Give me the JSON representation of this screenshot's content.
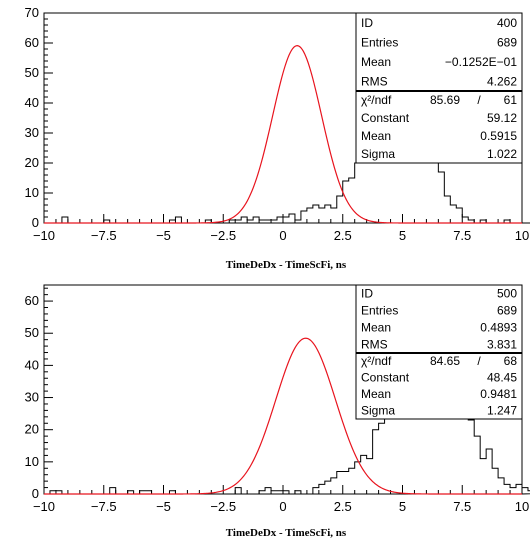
{
  "chart_data": [
    {
      "type": "histogram",
      "xlabel": "TimeDeDx - TimeScFi, ns",
      "xlim": [
        -10,
        10
      ],
      "ylim": [
        0,
        70
      ],
      "x_ticks": [
        -10,
        -7.5,
        -5,
        -2.5,
        0,
        2.5,
        5,
        7.5,
        10
      ],
      "x_tick_labels": [
        "−10",
        "−7.5",
        "−5",
        "−2.5",
        "0",
        "2.5",
        "5",
        "7.5",
        "10"
      ],
      "y_ticks": [
        0,
        10,
        20,
        30,
        40,
        50,
        60,
        70
      ],
      "y_tick_labels": [
        "0",
        "10",
        "20",
        "30",
        "40",
        "50",
        "60",
        "70"
      ],
      "bin_width": 0.25,
      "counts": [
        0,
        0,
        0,
        2,
        0,
        0,
        0,
        0,
        0,
        0,
        1,
        0,
        0,
        0,
        0,
        0,
        0,
        0,
        0,
        0,
        0,
        1,
        2,
        0,
        0,
        0,
        0,
        1,
        0,
        0,
        0,
        1,
        1,
        2,
        1,
        2,
        1,
        1,
        1,
        2,
        2,
        3,
        1,
        4,
        5,
        6,
        5,
        6,
        5,
        9,
        14,
        15,
        20,
        27,
        35,
        43,
        49,
        53,
        65,
        60,
        52,
        65,
        65,
        60,
        40,
        28,
        17,
        9,
        6,
        5,
        2,
        1,
        0,
        1,
        0,
        0,
        0,
        1,
        0,
        0,
        0,
        0,
        0,
        0,
        1,
        0,
        0,
        0,
        0,
        0,
        0,
        0,
        0,
        0,
        0,
        0,
        0,
        0,
        0,
        0
      ],
      "fit": {
        "constant": 59.12,
        "mean": 0.5915,
        "sigma": 1.022,
        "color": "#e8141e"
      },
      "stats": [
        {
          "label": "ID",
          "value": "400"
        },
        {
          "label": "Entries",
          "value": "689"
        },
        {
          "label": "Mean",
          "value": "−0.1252E−01"
        },
        {
          "label": "RMS",
          "value": "4.262"
        }
      ],
      "fit_stats": {
        "chi2_label": "χ²/ndf",
        "chi2": "85.69",
        "slash": "/",
        "ndf": "61",
        "rows": [
          {
            "label": "Constant",
            "value": "59.12"
          },
          {
            "label": "Mean",
            "value": "0.5915"
          },
          {
            "label": "Sigma",
            "value": "1.022"
          }
        ]
      }
    },
    {
      "type": "histogram",
      "xlabel": "TimeDeDx - TimeScFi, ns",
      "xlim": [
        -10,
        10
      ],
      "ylim": [
        0,
        65
      ],
      "x_ticks": [
        -10,
        -7.5,
        -5,
        -2.5,
        0,
        2.5,
        5,
        7.5,
        10
      ],
      "x_tick_labels": [
        "−10",
        "−7.5",
        "−5",
        "−2.5",
        "0",
        "2.5",
        "5",
        "7.5",
        "10"
      ],
      "y_ticks": [
        0,
        10,
        20,
        30,
        40,
        50,
        60
      ],
      "y_tick_labels": [
        "0",
        "10",
        "20",
        "30",
        "40",
        "50",
        "60"
      ],
      "bin_width": 0.25,
      "counts": [
        0,
        1,
        1,
        0,
        0,
        0,
        0,
        0,
        0,
        0,
        0,
        2,
        0,
        0,
        1,
        0,
        1,
        1,
        0,
        0,
        0,
        1,
        0,
        0,
        0,
        0,
        0,
        0,
        0,
        0,
        0,
        0,
        2,
        0,
        0,
        0,
        1,
        2,
        1,
        1,
        1,
        0,
        1,
        0,
        0,
        2,
        3,
        4,
        5,
        7,
        7,
        8,
        10,
        12,
        11,
        20,
        22,
        30,
        26,
        30,
        41,
        34,
        37,
        45,
        47,
        49,
        57,
        59,
        35,
        33,
        25,
        23,
        18,
        11,
        14,
        8,
        5,
        3,
        2,
        3,
        2,
        1,
        0,
        1,
        0,
        0,
        0,
        2,
        1,
        0,
        0,
        0,
        1,
        1,
        0,
        0,
        0,
        0,
        0,
        1
      ],
      "fit": {
        "constant": 48.45,
        "mean": 0.9481,
        "sigma": 1.247,
        "color": "#e8141e"
      },
      "stats": [
        {
          "label": "ID",
          "value": "500"
        },
        {
          "label": "Entries",
          "value": "689"
        },
        {
          "label": "Mean",
          "value": "0.4893"
        },
        {
          "label": "RMS",
          "value": "3.831"
        }
      ],
      "fit_stats": {
        "chi2_label": "χ²/ndf",
        "chi2": "84.65",
        "slash": "/",
        "ndf": "68",
        "rows": [
          {
            "label": "Constant",
            "value": "48.45"
          },
          {
            "label": "Mean",
            "value": "0.9481"
          },
          {
            "label": "Sigma",
            "value": "1.247"
          }
        ]
      }
    }
  ]
}
